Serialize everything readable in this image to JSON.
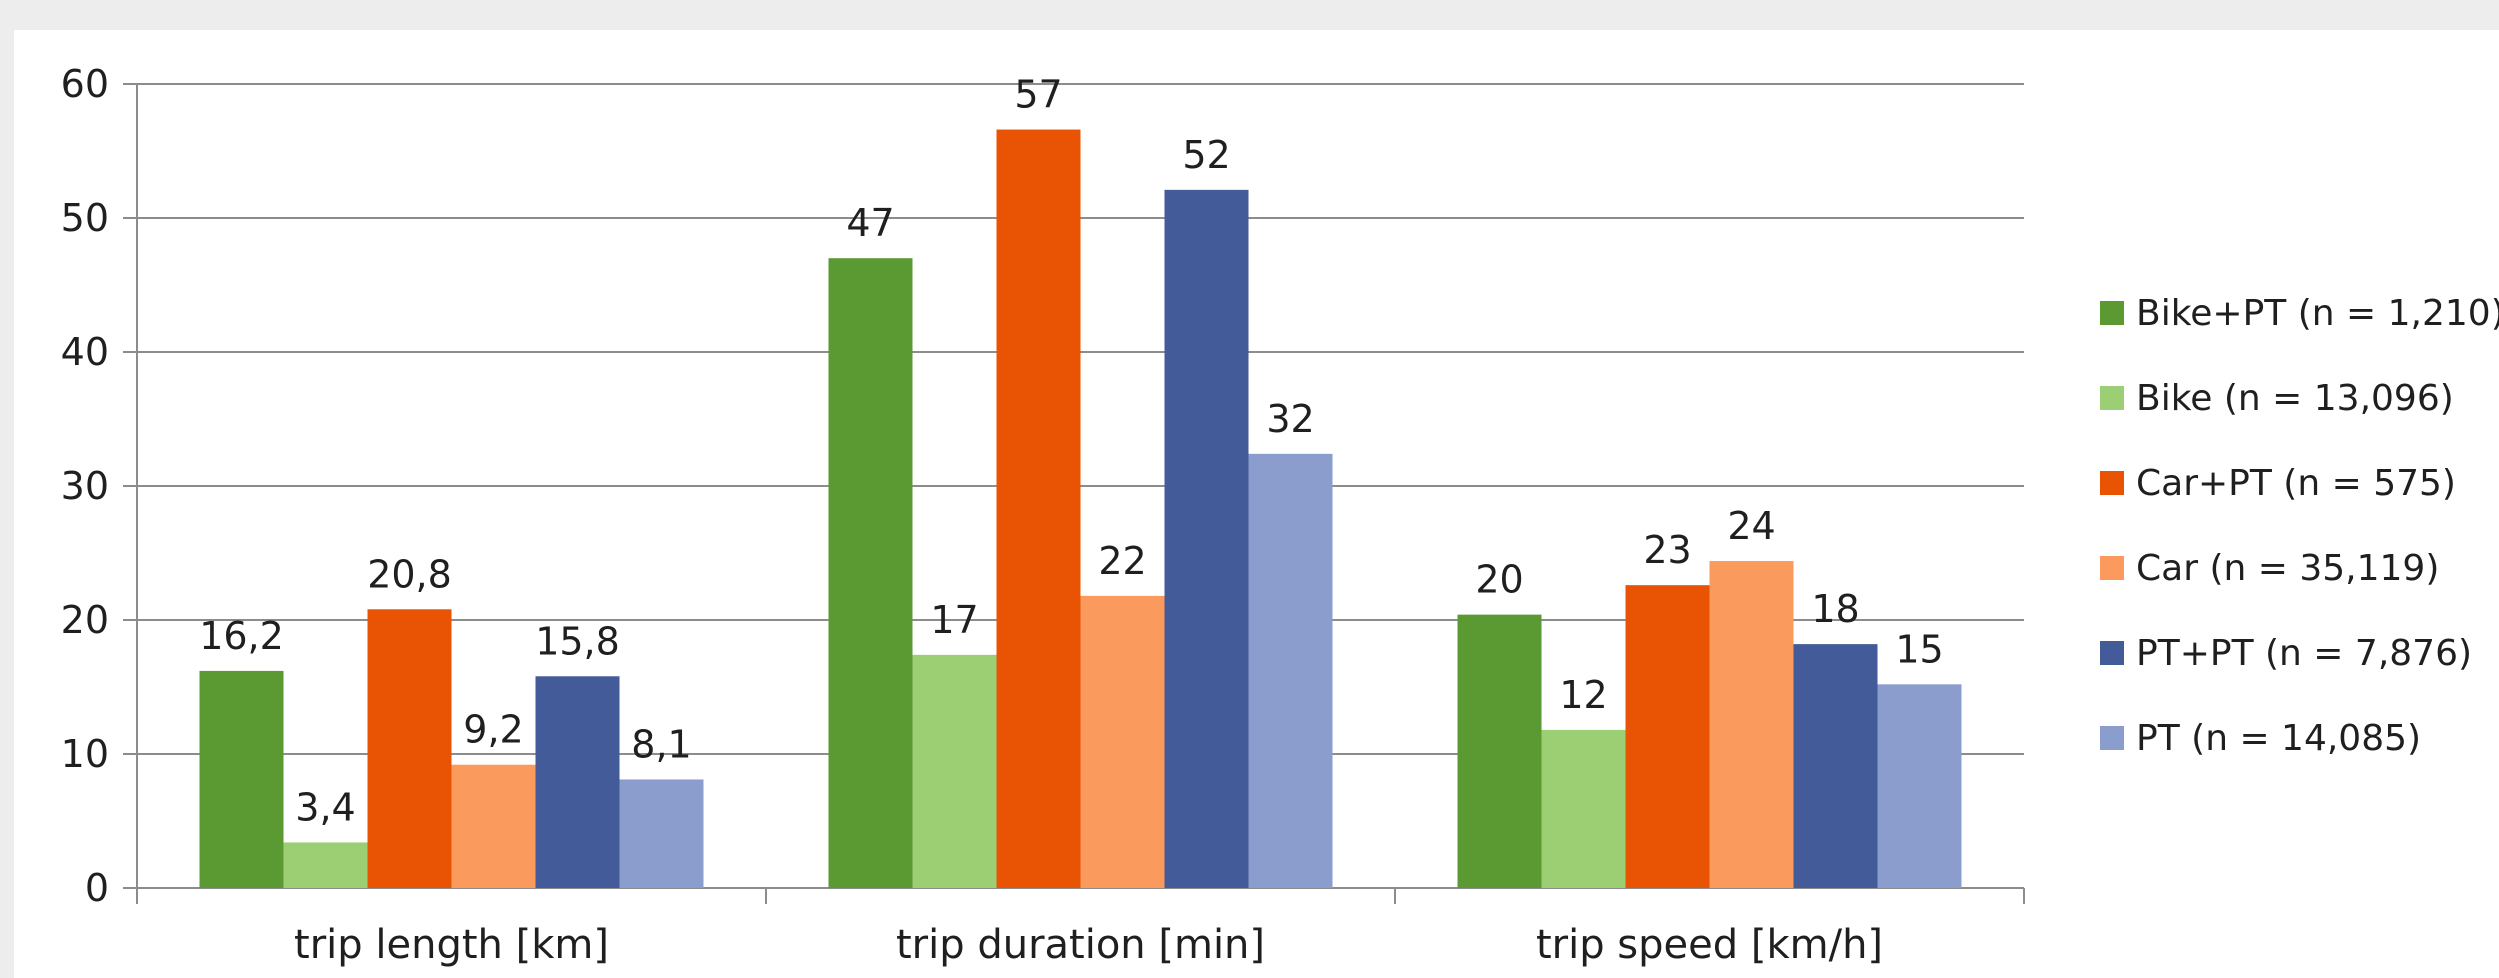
{
  "chart_data": {
    "type": "bar",
    "title": "",
    "xlabel": "",
    "ylabel": "",
    "ylim": [
      0,
      60
    ],
    "yticks": [
      0,
      10,
      20,
      30,
      40,
      50,
      60
    ],
    "grid": true,
    "legend_position": "right",
    "categories": [
      "trip length [km]",
      "trip duration [min]",
      "trip speed [km/h]"
    ],
    "series": [
      {
        "name": "Bike+PT (n = 1,210)",
        "color": "#5b9a33",
        "values": [
          16.2,
          47,
          20.4
        ],
        "labels": [
          "16,2",
          "47",
          "20"
        ]
      },
      {
        "name": "Bike (n = 13,096)",
        "color": "#9ccf73",
        "values": [
          3.4,
          17.4,
          11.8
        ],
        "labels": [
          "3,4",
          "17",
          "12"
        ]
      },
      {
        "name": "Car+PT (n = 575)",
        "color": "#e85404",
        "values": [
          20.8,
          56.6,
          22.6
        ],
        "labels": [
          "20,8",
          "57",
          "23"
        ]
      },
      {
        "name": "Car (n = 35,119)",
        "color": "#fb9a5d",
        "values": [
          9.2,
          21.8,
          24.4
        ],
        "labels": [
          "9,2",
          "22",
          "24"
        ]
      },
      {
        "name": "PT+PT (n = 7,876)",
        "color": "#445b9a",
        "values": [
          15.8,
          52.1,
          18.2
        ],
        "labels": [
          "15,8",
          "52",
          "18"
        ]
      },
      {
        "name": "PT (n = 14,085)",
        "color": "#8b9dcc",
        "values": [
          8.1,
          32.4,
          15.2
        ],
        "labels": [
          "8,1",
          "32",
          "15"
        ]
      }
    ]
  }
}
